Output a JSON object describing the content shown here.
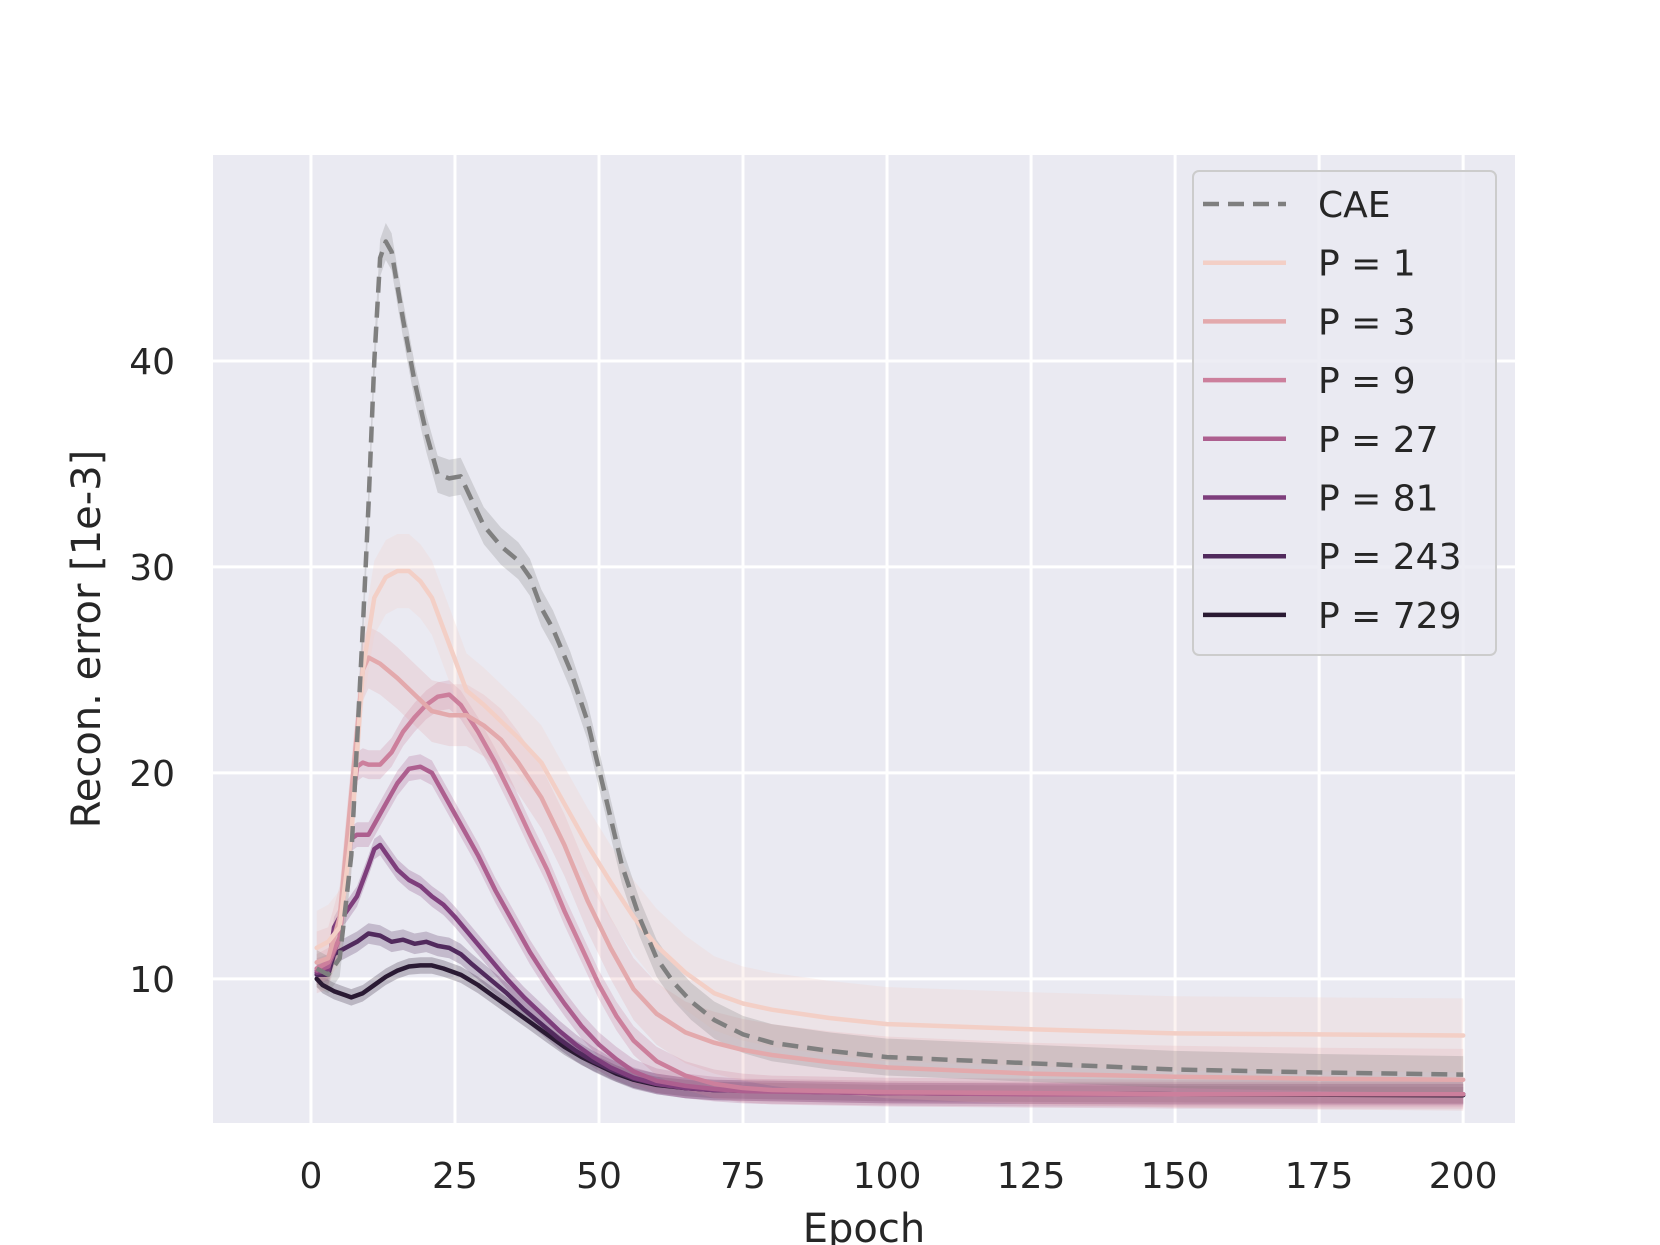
{
  "chart_data": {
    "type": "line",
    "title": "",
    "xlabel": "Epoch",
    "ylabel": "Recon. error [1e-3]",
    "xlim": [
      -17,
      209
    ],
    "ylim": [
      3.0,
      50.0
    ],
    "xticks": [
      0,
      25,
      50,
      75,
      100,
      125,
      150,
      175,
      200
    ],
    "xtick_labels": [
      "0",
      "25",
      "50",
      "75",
      "100",
      "125",
      "150",
      "175",
      "200"
    ],
    "yticks": [
      10,
      20,
      30,
      40
    ],
    "ytick_labels": [
      "10",
      "20",
      "30",
      "40"
    ],
    "grid": true,
    "legend_position": "top-right",
    "series": [
      {
        "name": "CAE",
        "color": "#7f7f7f",
        "dashed": true,
        "band": 0.9,
        "points": [
          [
            1,
            10.5
          ],
          [
            3,
            10.2
          ],
          [
            5,
            11
          ],
          [
            7,
            16
          ],
          [
            9,
            27
          ],
          [
            10,
            33
          ],
          [
            11,
            40
          ],
          [
            12,
            45
          ],
          [
            13,
            45.8
          ],
          [
            14,
            45.3
          ],
          [
            16,
            42
          ],
          [
            18,
            39
          ],
          [
            20,
            36.5
          ],
          [
            22,
            34.5
          ],
          [
            24,
            34.3
          ],
          [
            26,
            34.4
          ],
          [
            28,
            33.2
          ],
          [
            30,
            32
          ],
          [
            33,
            31
          ],
          [
            36,
            30.3
          ],
          [
            38,
            29.5
          ],
          [
            40,
            28
          ],
          [
            42,
            27
          ],
          [
            45,
            25
          ],
          [
            48,
            22.5
          ],
          [
            51,
            19
          ],
          [
            54,
            15.5
          ],
          [
            57,
            13
          ],
          [
            60,
            11
          ],
          [
            63,
            9.8
          ],
          [
            66,
            8.9
          ],
          [
            70,
            8
          ],
          [
            75,
            7.3
          ],
          [
            80,
            6.9
          ],
          [
            90,
            6.5
          ],
          [
            100,
            6.2
          ],
          [
            125,
            5.9
          ],
          [
            150,
            5.6
          ],
          [
            175,
            5.45
          ],
          [
            200,
            5.35
          ]
        ]
      },
      {
        "name": "P = 1",
        "color": "#f3cfc6",
        "dashed": false,
        "band": 1.8,
        "points": [
          [
            1,
            11.5
          ],
          [
            3,
            11.8
          ],
          [
            5,
            12.5
          ],
          [
            7,
            17
          ],
          [
            9,
            25
          ],
          [
            11,
            28.5
          ],
          [
            13,
            29.5
          ],
          [
            15,
            29.8
          ],
          [
            17,
            29.8
          ],
          [
            19,
            29.3
          ],
          [
            21,
            28.5
          ],
          [
            23,
            27
          ],
          [
            25,
            25.5
          ],
          [
            27,
            24
          ],
          [
            30,
            23.3
          ],
          [
            33,
            22.5
          ],
          [
            36,
            21.7
          ],
          [
            40,
            20.5
          ],
          [
            44,
            18.5
          ],
          [
            48,
            16.5
          ],
          [
            52,
            14.7
          ],
          [
            56,
            13
          ],
          [
            60,
            11.6
          ],
          [
            65,
            10.3
          ],
          [
            70,
            9.3
          ],
          [
            75,
            8.8
          ],
          [
            80,
            8.5
          ],
          [
            90,
            8.1
          ],
          [
            100,
            7.8
          ],
          [
            125,
            7.55
          ],
          [
            150,
            7.35
          ],
          [
            175,
            7.3
          ],
          [
            200,
            7.25
          ]
        ]
      },
      {
        "name": "P = 3",
        "color": "#e3a9ac",
        "dashed": false,
        "band": 1.5,
        "points": [
          [
            1,
            10.8
          ],
          [
            3,
            11
          ],
          [
            5,
            13
          ],
          [
            7,
            19
          ],
          [
            9,
            25
          ],
          [
            10,
            25.6
          ],
          [
            12,
            25.3
          ],
          [
            15,
            24.6
          ],
          [
            18,
            23.8
          ],
          [
            21,
            23
          ],
          [
            24,
            22.8
          ],
          [
            27,
            22.8
          ],
          [
            30,
            22.3
          ],
          [
            33,
            21.6
          ],
          [
            36,
            20.5
          ],
          [
            40,
            18.8
          ],
          [
            44,
            16.5
          ],
          [
            48,
            13.8
          ],
          [
            52,
            11.5
          ],
          [
            56,
            9.5
          ],
          [
            60,
            8.3
          ],
          [
            65,
            7.4
          ],
          [
            70,
            6.9
          ],
          [
            75,
            6.55
          ],
          [
            80,
            6.3
          ],
          [
            90,
            5.95
          ],
          [
            100,
            5.7
          ],
          [
            125,
            5.4
          ],
          [
            150,
            5.25
          ],
          [
            175,
            5.15
          ],
          [
            200,
            5.1
          ]
        ]
      },
      {
        "name": "P = 9",
        "color": "#cc7f9c",
        "dashed": false,
        "band": 0.7,
        "points": [
          [
            1,
            10.5
          ],
          [
            3,
            10.8
          ],
          [
            5,
            12
          ],
          [
            7,
            18
          ],
          [
            8,
            20.3
          ],
          [
            9,
            20.5
          ],
          [
            10,
            20.4
          ],
          [
            12,
            20.4
          ],
          [
            14,
            21
          ],
          [
            16,
            22
          ],
          [
            18,
            22.7
          ],
          [
            20,
            23.3
          ],
          [
            22,
            23.7
          ],
          [
            24,
            23.8
          ],
          [
            26,
            23.3
          ],
          [
            29,
            22
          ],
          [
            32,
            20.5
          ],
          [
            35,
            18.8
          ],
          [
            38,
            17
          ],
          [
            41,
            15.3
          ],
          [
            44,
            13.3
          ],
          [
            47,
            11.5
          ],
          [
            50,
            9.7
          ],
          [
            53,
            8.2
          ],
          [
            56,
            7
          ],
          [
            60,
            6
          ],
          [
            65,
            5.3
          ],
          [
            70,
            4.9
          ],
          [
            75,
            4.7
          ],
          [
            80,
            4.6
          ],
          [
            100,
            4.5
          ],
          [
            125,
            4.45
          ],
          [
            150,
            4.4
          ],
          [
            175,
            4.4
          ],
          [
            200,
            4.4
          ]
        ]
      },
      {
        "name": "P = 27",
        "color": "#ad5f8f",
        "dashed": false,
        "band": 0.6,
        "points": [
          [
            1,
            10.4
          ],
          [
            3,
            10.6
          ],
          [
            5,
            12
          ],
          [
            6,
            15.5
          ],
          [
            7,
            16.8
          ],
          [
            8,
            17
          ],
          [
            9,
            17
          ],
          [
            10,
            17
          ],
          [
            11,
            17.5
          ],
          [
            13,
            18.5
          ],
          [
            15,
            19.5
          ],
          [
            17,
            20.2
          ],
          [
            19,
            20.3
          ],
          [
            21,
            20
          ],
          [
            23,
            19
          ],
          [
            26,
            17.5
          ],
          [
            29,
            16
          ],
          [
            32,
            14.3
          ],
          [
            35,
            12.8
          ],
          [
            38,
            11.3
          ],
          [
            41,
            10
          ],
          [
            44,
            8.8
          ],
          [
            47,
            7.7
          ],
          [
            50,
            6.8
          ],
          [
            53,
            6.1
          ],
          [
            56,
            5.5
          ],
          [
            60,
            5.05
          ],
          [
            65,
            4.8
          ],
          [
            70,
            4.65
          ],
          [
            75,
            4.55
          ],
          [
            100,
            4.45
          ],
          [
            125,
            4.4
          ],
          [
            150,
            4.4
          ],
          [
            200,
            4.4
          ]
        ]
      },
      {
        "name": "P = 81",
        "color": "#7e3e7c",
        "dashed": false,
        "band": 0.5,
        "points": [
          [
            1,
            10.3
          ],
          [
            3,
            10.4
          ],
          [
            4,
            12.5
          ],
          [
            5,
            13
          ],
          [
            6,
            13.2
          ],
          [
            8,
            14
          ],
          [
            10,
            15.5
          ],
          [
            11,
            16.3
          ],
          [
            12,
            16.5
          ],
          [
            13,
            16.1
          ],
          [
            15,
            15.3
          ],
          [
            17,
            14.8
          ],
          [
            19,
            14.5
          ],
          [
            21,
            14
          ],
          [
            23,
            13.6
          ],
          [
            25,
            13
          ],
          [
            28,
            12
          ],
          [
            31,
            11
          ],
          [
            34,
            10
          ],
          [
            37,
            9.1
          ],
          [
            40,
            8.3
          ],
          [
            43,
            7.5
          ],
          [
            46,
            6.8
          ],
          [
            49,
            6.2
          ],
          [
            52,
            5.7
          ],
          [
            56,
            5.2
          ],
          [
            60,
            4.9
          ],
          [
            65,
            4.7
          ],
          [
            70,
            4.6
          ],
          [
            100,
            4.45
          ],
          [
            150,
            4.4
          ],
          [
            200,
            4.4
          ]
        ]
      },
      {
        "name": "P = 243",
        "color": "#512a5d",
        "dashed": false,
        "band": 0.5,
        "points": [
          [
            1,
            10.2
          ],
          [
            3,
            10.2
          ],
          [
            4,
            11.2
          ],
          [
            6,
            11.5
          ],
          [
            8,
            11.8
          ],
          [
            10,
            12.2
          ],
          [
            12,
            12.1
          ],
          [
            14,
            11.8
          ],
          [
            16,
            11.9
          ],
          [
            18,
            11.7
          ],
          [
            20,
            11.8
          ],
          [
            22,
            11.6
          ],
          [
            24,
            11.5
          ],
          [
            26,
            11.2
          ],
          [
            28,
            10.7
          ],
          [
            31,
            10
          ],
          [
            34,
            9.3
          ],
          [
            37,
            8.5
          ],
          [
            40,
            7.8
          ],
          [
            43,
            7.1
          ],
          [
            46,
            6.5
          ],
          [
            49,
            6
          ],
          [
            52,
            5.6
          ],
          [
            56,
            5.15
          ],
          [
            60,
            4.9
          ],
          [
            65,
            4.7
          ],
          [
            70,
            4.6
          ],
          [
            100,
            4.45
          ],
          [
            150,
            4.4
          ],
          [
            200,
            4.4
          ]
        ]
      },
      {
        "name": "P = 729",
        "color": "#2a1a33",
        "dashed": false,
        "band": 0.4,
        "points": [
          [
            1,
            10.0
          ],
          [
            2,
            9.7
          ],
          [
            4,
            9.4
          ],
          [
            6,
            9.2
          ],
          [
            7,
            9.1
          ],
          [
            9,
            9.3
          ],
          [
            11,
            9.7
          ],
          [
            13,
            10.1
          ],
          [
            15,
            10.4
          ],
          [
            17,
            10.6
          ],
          [
            19,
            10.65
          ],
          [
            21,
            10.65
          ],
          [
            23,
            10.5
          ],
          [
            26,
            10.2
          ],
          [
            29,
            9.7
          ],
          [
            32,
            9.1
          ],
          [
            35,
            8.5
          ],
          [
            38,
            7.9
          ],
          [
            41,
            7.3
          ],
          [
            44,
            6.7
          ],
          [
            47,
            6.2
          ],
          [
            50,
            5.8
          ],
          [
            53,
            5.4
          ],
          [
            56,
            5.1
          ],
          [
            60,
            4.85
          ],
          [
            65,
            4.7
          ],
          [
            70,
            4.6
          ],
          [
            100,
            4.45
          ],
          [
            150,
            4.4
          ],
          [
            200,
            4.35
          ]
        ]
      }
    ]
  }
}
